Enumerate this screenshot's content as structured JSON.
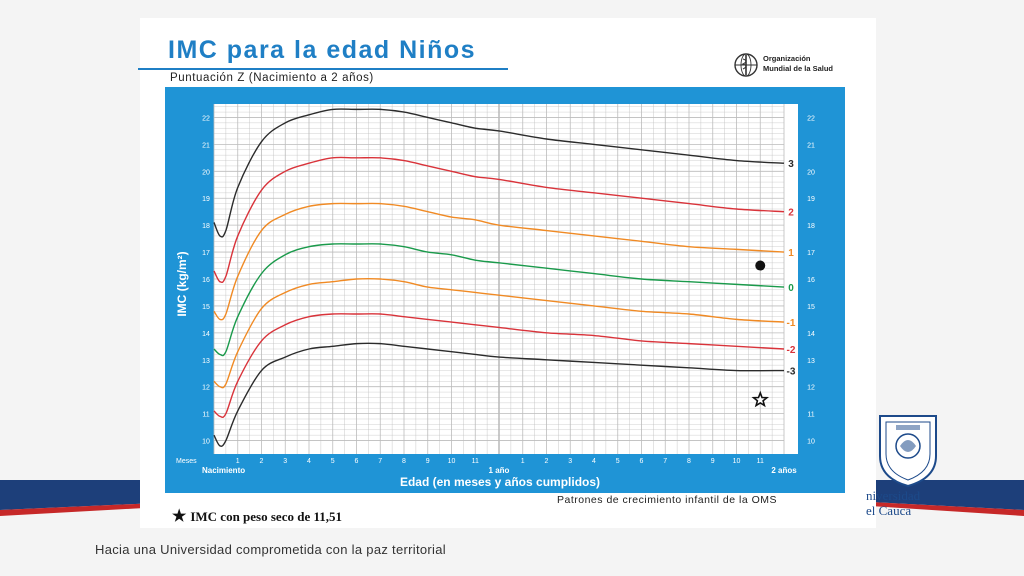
{
  "header": {
    "title": "IMC para la edad Niños",
    "subtitle": "Puntuación Z (Nacimiento a 2 años)",
    "logo_line1": "Organización",
    "logo_line2": "Mundial de la Salud"
  },
  "chart_data": {
    "type": "line",
    "title": "IMC para la edad Niños",
    "subtitle": "Puntuación Z (Nacimiento a 2 años)",
    "xlabel": "Edad (en meses y años cumplidos)",
    "ylabel": "IMC (kg/m²)",
    "xlim": [
      0,
      24
    ],
    "ylim": [
      9.5,
      22.5
    ],
    "grid": true,
    "x_ticks": [
      "1",
      "2",
      "3",
      "4",
      "5",
      "6",
      "7",
      "8",
      "9",
      "10",
      "11",
      "1",
      "2",
      "3",
      "4",
      "5",
      "6",
      "7",
      "8",
      "9",
      "10",
      "11"
    ],
    "x_tick_months": [
      1,
      2,
      3,
      4,
      5,
      6,
      7,
      8,
      9,
      10,
      11,
      13,
      14,
      15,
      16,
      17,
      18,
      19,
      20,
      21,
      22,
      23
    ],
    "x_prefix_label": "Meses",
    "x_major_labels": [
      {
        "month": 0,
        "label": "Nacimiento"
      },
      {
        "month": 12,
        "label": "1 año"
      },
      {
        "month": 24,
        "label": "2 años"
      }
    ],
    "y_ticks": [
      10,
      11,
      12,
      13,
      14,
      15,
      16,
      17,
      18,
      19,
      20,
      21,
      22
    ],
    "x": [
      0,
      0.25,
      0.5,
      1,
      2,
      3,
      4,
      5,
      6,
      7,
      8,
      9,
      10,
      11,
      12,
      14,
      16,
      18,
      20,
      22,
      24
    ],
    "series": [
      {
        "name": "3",
        "color": "#2b2b2b",
        "values": [
          18.1,
          17.6,
          17.8,
          19.4,
          21.1,
          21.8,
          22.1,
          22.3,
          22.3,
          22.3,
          22.2,
          22.0,
          21.8,
          21.6,
          21.5,
          21.2,
          21.0,
          20.8,
          20.6,
          20.4,
          20.3
        ]
      },
      {
        "name": "2",
        "color": "#d9333a",
        "values": [
          16.3,
          15.9,
          16.1,
          17.6,
          19.3,
          20.0,
          20.3,
          20.5,
          20.5,
          20.5,
          20.4,
          20.2,
          20.0,
          19.8,
          19.7,
          19.4,
          19.2,
          19.0,
          18.8,
          18.6,
          18.5
        ]
      },
      {
        "name": "1",
        "color": "#f08a24",
        "values": [
          14.8,
          14.5,
          14.7,
          16.1,
          17.8,
          18.4,
          18.7,
          18.8,
          18.8,
          18.8,
          18.7,
          18.5,
          18.3,
          18.2,
          18.0,
          17.8,
          17.6,
          17.4,
          17.2,
          17.1,
          17.0
        ]
      },
      {
        "name": "0",
        "color": "#1a9a4b",
        "values": [
          13.4,
          13.2,
          13.3,
          14.6,
          16.2,
          16.9,
          17.2,
          17.3,
          17.3,
          17.3,
          17.2,
          17.0,
          16.9,
          16.7,
          16.6,
          16.4,
          16.2,
          16.0,
          15.9,
          15.8,
          15.7
        ]
      },
      {
        "name": "-1",
        "color": "#f08a24",
        "values": [
          12.2,
          12.0,
          12.1,
          13.3,
          14.9,
          15.5,
          15.8,
          15.9,
          16.0,
          16.0,
          15.9,
          15.7,
          15.6,
          15.5,
          15.4,
          15.2,
          15.0,
          14.8,
          14.7,
          14.5,
          14.4
        ]
      },
      {
        "name": "-2",
        "color": "#d9333a",
        "values": [
          11.1,
          10.9,
          11.0,
          12.2,
          13.7,
          14.3,
          14.6,
          14.7,
          14.7,
          14.7,
          14.6,
          14.5,
          14.4,
          14.3,
          14.2,
          14.0,
          13.9,
          13.7,
          13.6,
          13.5,
          13.4
        ]
      },
      {
        "name": "-3",
        "color": "#2b2b2b",
        "values": [
          10.2,
          9.8,
          10.0,
          11.1,
          12.6,
          13.1,
          13.4,
          13.5,
          13.6,
          13.6,
          13.5,
          13.4,
          13.3,
          13.2,
          13.1,
          13.0,
          12.9,
          12.8,
          12.7,
          12.6,
          12.6
        ]
      }
    ],
    "markers": [
      {
        "type": "dot",
        "x": 23,
        "y": 16.5
      },
      {
        "type": "star",
        "x": 23,
        "y": 11.51
      }
    ]
  },
  "footer": {
    "source": "Patrones de crecimiento infantil de la OMS",
    "note_star": "★",
    "note": "IMC con peso seco de 11,51",
    "tagline": "Hacia una Universidad comprometida con la paz territorial",
    "university_line1": "niversidad",
    "university_line2": "el Cauca"
  },
  "colors": {
    "frame": "#1f94d6",
    "grid": "#bcbcbc",
    "title": "#1f7fc5",
    "band_blue": "#1d3f7a",
    "band_red": "#c62828"
  }
}
